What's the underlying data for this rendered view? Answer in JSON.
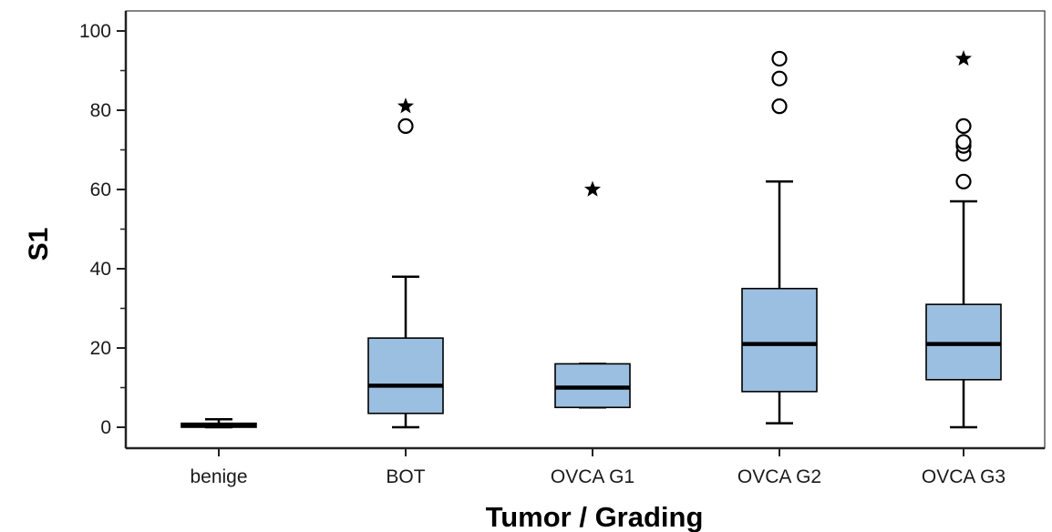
{
  "chart_data": {
    "type": "boxplot",
    "xlabel": "Tumor / Grading",
    "ylabel": "S1",
    "ylim": [
      -5,
      104
    ],
    "yticks": [
      "0",
      "20",
      "40",
      "60",
      "80",
      "100"
    ],
    "grid": false,
    "box_color": "#9bbfe0",
    "categories": [
      "benige",
      "BOT",
      "OVCA G1",
      "OVCA G2",
      "OVCA G3"
    ],
    "boxes": [
      {
        "category": "benige",
        "min": 0,
        "q1": 0,
        "median": 0.5,
        "q3": 1,
        "max": 2,
        "outliers": [],
        "extremes": []
      },
      {
        "category": "BOT",
        "min": 0,
        "q1": 3.5,
        "median": 10.5,
        "q3": 22.5,
        "max": 38,
        "outliers": [
          76
        ],
        "extremes": [
          81
        ]
      },
      {
        "category": "OVCA G1",
        "min": 5,
        "q1": 5,
        "median": 10,
        "q3": 16,
        "max": 16,
        "outliers": [],
        "extremes": [
          60
        ]
      },
      {
        "category": "OVCA G2",
        "min": 1,
        "q1": 9,
        "median": 21,
        "q3": 35,
        "max": 62,
        "outliers": [
          81,
          88,
          93
        ],
        "extremes": []
      },
      {
        "category": "OVCA G3",
        "min": 0,
        "q1": 12,
        "median": 21,
        "q3": 31,
        "max": 57,
        "outliers": [
          62,
          69,
          71,
          72,
          76
        ],
        "extremes": [
          93
        ]
      }
    ]
  }
}
